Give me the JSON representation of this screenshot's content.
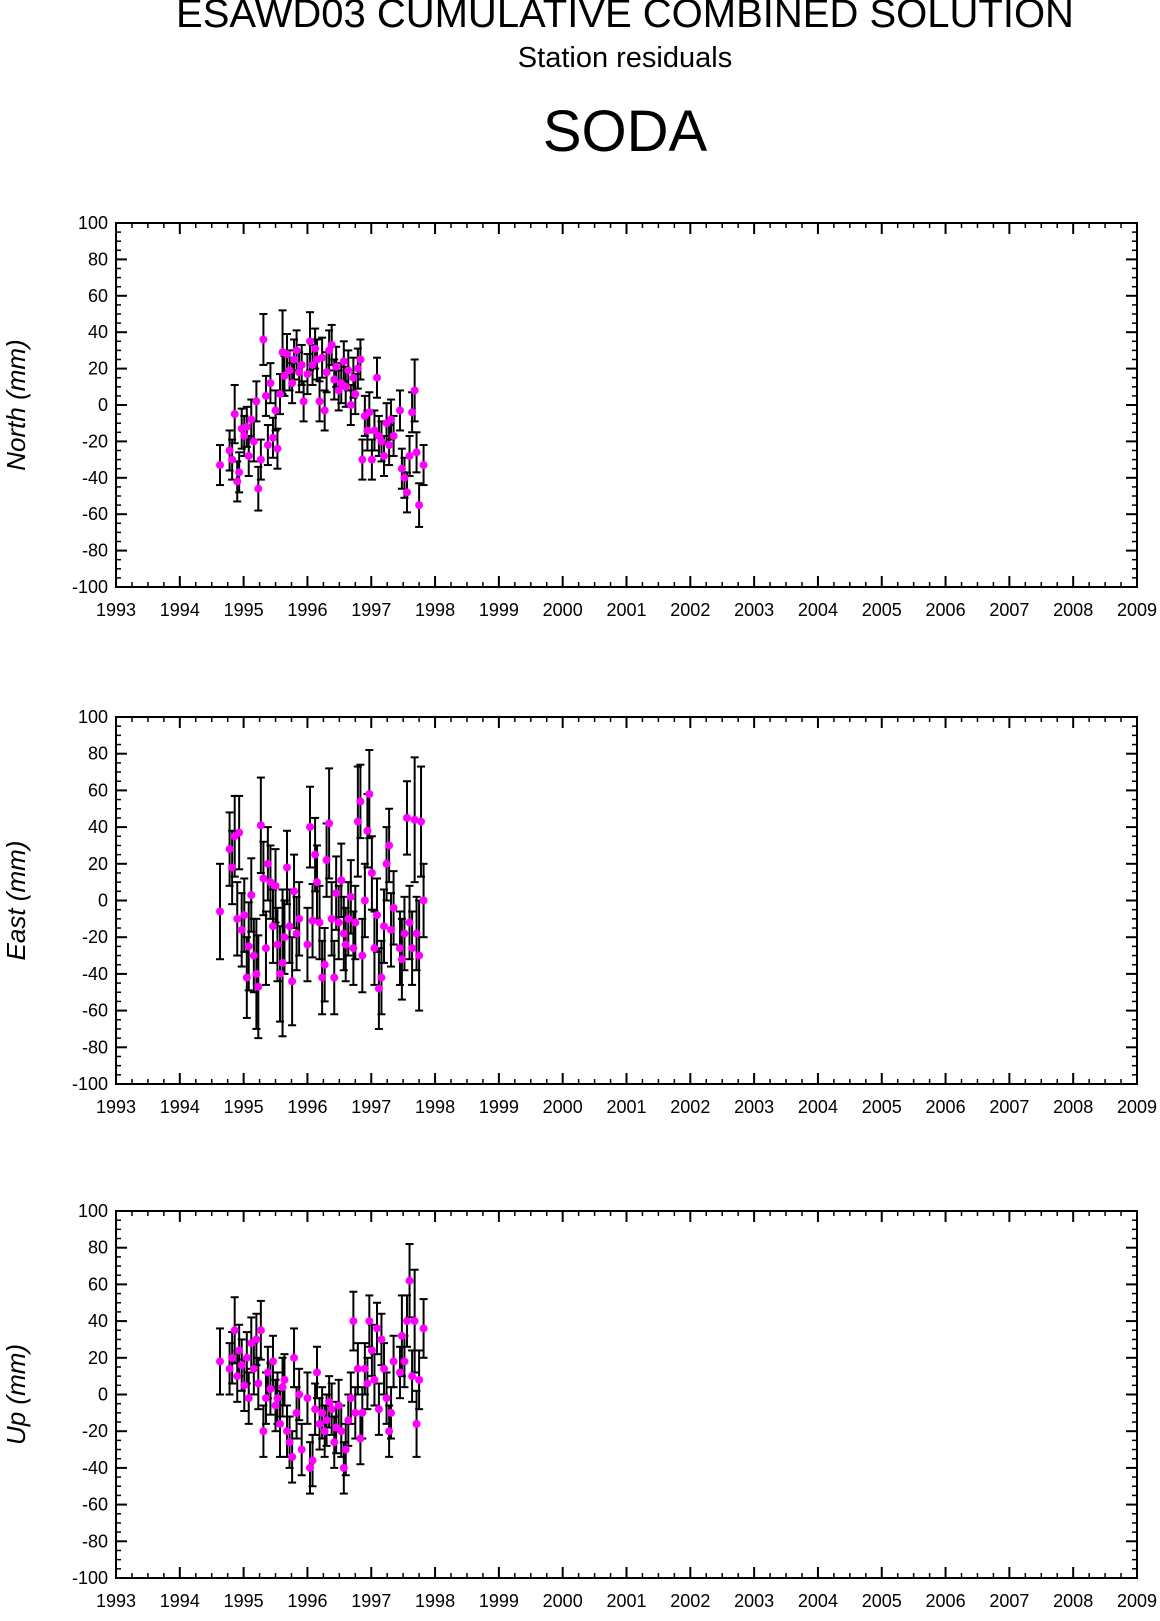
{
  "header": {
    "title": "ESAWD03 CUMULATIVE COMBINED SOLUTION",
    "subtitle": "Station residuals",
    "station": "SODA"
  },
  "colors": {
    "marker": "#ff00ff",
    "errorbar": "#000000",
    "axis": "#000000"
  },
  "chart_data": [
    {
      "type": "scatter",
      "ylabel": "North (mm)",
      "ylim": [
        -100,
        100
      ],
      "xlim": [
        1993,
        2009
      ],
      "xticks": [
        "1993",
        "1994",
        "1995",
        "1996",
        "1997",
        "1998",
        "1999",
        "2000",
        "2001",
        "2002",
        "2003",
        "2004",
        "2005",
        "2006",
        "2007",
        "2008",
        "2009"
      ],
      "yticks": [
        "100",
        "80",
        "60",
        "40",
        "20",
        "0",
        "-20",
        "-40",
        "-60",
        "-80",
        "-100"
      ],
      "error_bars": true,
      "grid": false,
      "points": [
        [
          1994.63,
          -33,
          11
        ],
        [
          1994.78,
          -25,
          11
        ],
        [
          1994.82,
          -30,
          11
        ],
        [
          1994.86,
          -5,
          16
        ],
        [
          1994.9,
          -42,
          11
        ],
        [
          1994.93,
          -37,
          11
        ],
        [
          1994.97,
          -13,
          11
        ],
        [
          1995.01,
          -17,
          11
        ],
        [
          1995.05,
          -12,
          11
        ],
        [
          1995.08,
          -28,
          11
        ],
        [
          1995.12,
          -8,
          11
        ],
        [
          1995.16,
          -20,
          11
        ],
        [
          1995.2,
          2,
          11
        ],
        [
          1995.23,
          -46,
          12
        ],
        [
          1995.27,
          -30,
          11
        ],
        [
          1995.31,
          36,
          14
        ],
        [
          1995.35,
          5,
          11
        ],
        [
          1995.38,
          -22,
          11
        ],
        [
          1995.42,
          12,
          11
        ],
        [
          1995.46,
          -18,
          11
        ],
        [
          1995.5,
          -3,
          11
        ],
        [
          1995.53,
          -24,
          11
        ],
        [
          1995.57,
          6,
          11
        ],
        [
          1995.61,
          29,
          23
        ],
        [
          1995.64,
          16,
          11
        ],
        [
          1995.68,
          28,
          11
        ],
        [
          1995.72,
          19,
          11
        ],
        [
          1995.76,
          12,
          11
        ],
        [
          1995.79,
          25,
          11
        ],
        [
          1995.83,
          30,
          11
        ],
        [
          1995.87,
          18,
          11
        ],
        [
          1995.91,
          22,
          11
        ],
        [
          1995.94,
          2,
          11
        ],
        [
          1996.0,
          17,
          11
        ],
        [
          1996.04,
          35,
          16
        ],
        [
          1996.08,
          22,
          11
        ],
        [
          1996.12,
          31,
          11
        ],
        [
          1996.15,
          25,
          11
        ],
        [
          1996.19,
          2,
          11
        ],
        [
          1996.23,
          26,
          11
        ],
        [
          1996.27,
          -3,
          11
        ],
        [
          1996.3,
          18,
          11
        ],
        [
          1996.34,
          30,
          11
        ],
        [
          1996.38,
          33,
          11
        ],
        [
          1996.42,
          14,
          11
        ],
        [
          1996.45,
          21,
          11
        ],
        [
          1996.49,
          8,
          11
        ],
        [
          1996.53,
          12,
          11
        ],
        [
          1996.57,
          24,
          11
        ],
        [
          1996.6,
          10,
          11
        ],
        [
          1996.64,
          19,
          11
        ],
        [
          1996.68,
          0,
          11
        ],
        [
          1996.72,
          15,
          11
        ],
        [
          1996.75,
          6,
          11
        ],
        [
          1996.79,
          20,
          11
        ],
        [
          1996.83,
          25,
          11
        ],
        [
          1996.86,
          -30,
          11
        ],
        [
          1996.9,
          -6,
          11
        ],
        [
          1996.94,
          -14,
          11
        ],
        [
          1996.97,
          -4,
          11
        ],
        [
          1997.01,
          -30,
          11
        ],
        [
          1997.05,
          -14,
          11
        ],
        [
          1997.09,
          15,
          11
        ],
        [
          1997.12,
          -17,
          11
        ],
        [
          1997.16,
          -20,
          11
        ],
        [
          1997.2,
          -28,
          11
        ],
        [
          1997.24,
          -10,
          11
        ],
        [
          1997.28,
          -22,
          11
        ],
        [
          1997.31,
          -8,
          11
        ],
        [
          1997.35,
          -17,
          11
        ],
        [
          1997.45,
          -3,
          11
        ],
        [
          1997.48,
          -35,
          11
        ],
        [
          1997.52,
          -40,
          11
        ],
        [
          1997.56,
          -48,
          11
        ],
        [
          1997.6,
          -28,
          11
        ],
        [
          1997.64,
          -4,
          11
        ],
        [
          1997.68,
          8,
          17
        ],
        [
          1997.71,
          -26,
          11
        ],
        [
          1997.75,
          -55,
          12
        ],
        [
          1997.82,
          -33,
          11
        ]
      ]
    },
    {
      "type": "scatter",
      "ylabel": "East (mm)",
      "ylim": [
        -100,
        100
      ],
      "xlim": [
        1993,
        2009
      ],
      "xticks": [
        "1993",
        "1994",
        "1995",
        "1996",
        "1997",
        "1998",
        "1999",
        "2000",
        "2001",
        "2002",
        "2003",
        "2004",
        "2005",
        "2006",
        "2007",
        "2008",
        "2009"
      ],
      "yticks": [
        "100",
        "80",
        "60",
        "40",
        "20",
        "0",
        "-20",
        "-40",
        "-60",
        "-80",
        "-100"
      ],
      "error_bars": true,
      "grid": false,
      "points": [
        [
          1994.63,
          -6,
          26
        ],
        [
          1994.78,
          28,
          20
        ],
        [
          1994.82,
          18,
          20
        ],
        [
          1994.86,
          35,
          22
        ],
        [
          1994.9,
          -10,
          20
        ],
        [
          1994.93,
          37,
          20
        ],
        [
          1994.97,
          -16,
          20
        ],
        [
          1995.01,
          -8,
          20
        ],
        [
          1995.05,
          -42,
          22
        ],
        [
          1995.08,
          -25,
          24
        ],
        [
          1995.12,
          3,
          20
        ],
        [
          1995.16,
          -30,
          20
        ],
        [
          1995.2,
          -40,
          30
        ],
        [
          1995.23,
          -47,
          28
        ],
        [
          1995.27,
          41,
          26
        ],
        [
          1995.31,
          12,
          20
        ],
        [
          1995.35,
          -26,
          20
        ],
        [
          1995.38,
          20,
          20
        ],
        [
          1995.42,
          10,
          20
        ],
        [
          1995.46,
          -14,
          20
        ],
        [
          1995.5,
          8,
          20
        ],
        [
          1995.53,
          -24,
          20
        ],
        [
          1995.57,
          -40,
          26
        ],
        [
          1995.61,
          -34,
          40
        ],
        [
          1995.64,
          -20,
          20
        ],
        [
          1995.68,
          18,
          20
        ],
        [
          1995.72,
          -14,
          20
        ],
        [
          1995.76,
          -44,
          24
        ],
        [
          1995.79,
          5,
          20
        ],
        [
          1995.83,
          -18,
          20
        ],
        [
          1995.87,
          -10,
          20
        ],
        [
          1996.0,
          -24,
          20
        ],
        [
          1996.04,
          40,
          22
        ],
        [
          1996.08,
          -11,
          20
        ],
        [
          1996.12,
          25,
          20
        ],
        [
          1996.15,
          10,
          20
        ],
        [
          1996.19,
          -12,
          20
        ],
        [
          1996.23,
          -42,
          20
        ],
        [
          1996.27,
          -35,
          20
        ],
        [
          1996.3,
          22,
          20
        ],
        [
          1996.34,
          42,
          30
        ],
        [
          1996.38,
          -10,
          20
        ],
        [
          1996.42,
          -42,
          20
        ],
        [
          1996.45,
          4,
          20
        ],
        [
          1996.49,
          -12,
          20
        ],
        [
          1996.53,
          11,
          20
        ],
        [
          1996.57,
          -18,
          20
        ],
        [
          1996.6,
          -24,
          20
        ],
        [
          1996.64,
          -10,
          20
        ],
        [
          1996.68,
          2,
          20
        ],
        [
          1996.72,
          -26,
          20
        ],
        [
          1996.75,
          -12,
          20
        ],
        [
          1996.79,
          43,
          30
        ],
        [
          1996.83,
          54,
          20
        ],
        [
          1996.86,
          -30,
          20
        ],
        [
          1996.9,
          0,
          20
        ],
        [
          1996.94,
          38,
          20
        ],
        [
          1996.97,
          58,
          24
        ],
        [
          1997.01,
          15,
          20
        ],
        [
          1997.05,
          -26,
          20
        ],
        [
          1997.09,
          -8,
          20
        ],
        [
          1997.12,
          -48,
          22
        ],
        [
          1997.16,
          -42,
          20
        ],
        [
          1997.2,
          -14,
          20
        ],
        [
          1997.24,
          20,
          20
        ],
        [
          1997.28,
          30,
          20
        ],
        [
          1997.31,
          -16,
          20
        ],
        [
          1997.35,
          -4,
          20
        ],
        [
          1997.45,
          -26,
          20
        ],
        [
          1997.48,
          -32,
          22
        ],
        [
          1997.52,
          -18,
          20
        ],
        [
          1997.56,
          45,
          20
        ],
        [
          1997.6,
          -12,
          20
        ],
        [
          1997.64,
          -26,
          20
        ],
        [
          1997.68,
          44,
          34
        ],
        [
          1997.71,
          -18,
          20
        ],
        [
          1997.75,
          -30,
          30
        ],
        [
          1997.78,
          43,
          30
        ],
        [
          1997.82,
          0,
          20
        ]
      ]
    },
    {
      "type": "scatter",
      "ylabel": "Up (mm)",
      "ylim": [
        -100,
        100
      ],
      "xlim": [
        1993,
        2009
      ],
      "xticks": [
        "1993",
        "1994",
        "1995",
        "1996",
        "1997",
        "1998",
        "1999",
        "2000",
        "2001",
        "2002",
        "2003",
        "2004",
        "2005",
        "2006",
        "2007",
        "2008",
        "2009"
      ],
      "yticks": [
        "100",
        "80",
        "60",
        "40",
        "20",
        "0",
        "-20",
        "-40",
        "-60",
        "-80",
        "-100"
      ],
      "error_bars": true,
      "grid": false,
      "points": [
        [
          1994.63,
          18,
          18
        ],
        [
          1994.78,
          14,
          14
        ],
        [
          1994.82,
          20,
          14
        ],
        [
          1994.86,
          35,
          18
        ],
        [
          1994.9,
          10,
          14
        ],
        [
          1994.93,
          24,
          14
        ],
        [
          1994.97,
          16,
          14
        ],
        [
          1995.01,
          5,
          14
        ],
        [
          1995.05,
          20,
          14
        ],
        [
          1995.08,
          -2,
          14
        ],
        [
          1995.12,
          28,
          14
        ],
        [
          1995.16,
          14,
          14
        ],
        [
          1995.2,
          30,
          14
        ],
        [
          1995.23,
          6,
          14
        ],
        [
          1995.27,
          35,
          16
        ],
        [
          1995.31,
          -20,
          14
        ],
        [
          1995.35,
          -2,
          14
        ],
        [
          1995.38,
          12,
          14
        ],
        [
          1995.42,
          3,
          14
        ],
        [
          1995.46,
          18,
          14
        ],
        [
          1995.5,
          -6,
          14
        ],
        [
          1995.53,
          -2,
          14
        ],
        [
          1995.57,
          -16,
          18
        ],
        [
          1995.61,
          4,
          16
        ],
        [
          1995.64,
          8,
          14
        ],
        [
          1995.68,
          -20,
          14
        ],
        [
          1995.72,
          -26,
          14
        ],
        [
          1995.76,
          -34,
          14
        ],
        [
          1995.79,
          20,
          16
        ],
        [
          1995.83,
          -10,
          14
        ],
        [
          1995.87,
          0,
          14
        ],
        [
          1995.91,
          -30,
          14
        ],
        [
          1996.0,
          -2,
          14
        ],
        [
          1996.04,
          -40,
          14
        ],
        [
          1996.08,
          -36,
          14
        ],
        [
          1996.12,
          -8,
          14
        ],
        [
          1996.15,
          12,
          14
        ],
        [
          1996.19,
          -16,
          14
        ],
        [
          1996.23,
          -10,
          14
        ],
        [
          1996.27,
          -20,
          14
        ],
        [
          1996.3,
          -14,
          14
        ],
        [
          1996.34,
          -4,
          14
        ],
        [
          1996.38,
          -8,
          14
        ],
        [
          1996.42,
          -26,
          14
        ],
        [
          1996.45,
          -18,
          14
        ],
        [
          1996.49,
          -6,
          14
        ],
        [
          1996.53,
          -20,
          14
        ],
        [
          1996.57,
          -40,
          14
        ],
        [
          1996.6,
          -30,
          14
        ],
        [
          1996.64,
          -14,
          14
        ],
        [
          1996.68,
          -2,
          14
        ],
        [
          1996.72,
          40,
          16
        ],
        [
          1996.75,
          -10,
          14
        ],
        [
          1996.79,
          14,
          14
        ],
        [
          1996.83,
          -24,
          14
        ],
        [
          1996.86,
          -10,
          14
        ],
        [
          1996.9,
          14,
          14
        ],
        [
          1996.94,
          6,
          14
        ],
        [
          1996.97,
          40,
          14
        ],
        [
          1997.01,
          24,
          14
        ],
        [
          1997.05,
          8,
          14
        ],
        [
          1997.09,
          36,
          14
        ],
        [
          1997.12,
          -8,
          14
        ],
        [
          1997.16,
          30,
          14
        ],
        [
          1997.2,
          14,
          14
        ],
        [
          1997.24,
          -2,
          14
        ],
        [
          1997.28,
          -20,
          14
        ],
        [
          1997.31,
          -10,
          14
        ],
        [
          1997.35,
          18,
          14
        ],
        [
          1997.45,
          12,
          14
        ],
        [
          1997.48,
          32,
          22
        ],
        [
          1997.52,
          18,
          14
        ],
        [
          1997.56,
          40,
          14
        ],
        [
          1997.6,
          62,
          20
        ],
        [
          1997.64,
          10,
          14
        ],
        [
          1997.68,
          40,
          28
        ],
        [
          1997.71,
          -16,
          18
        ],
        [
          1997.75,
          8,
          16
        ],
        [
          1997.82,
          36,
          16
        ]
      ]
    }
  ]
}
